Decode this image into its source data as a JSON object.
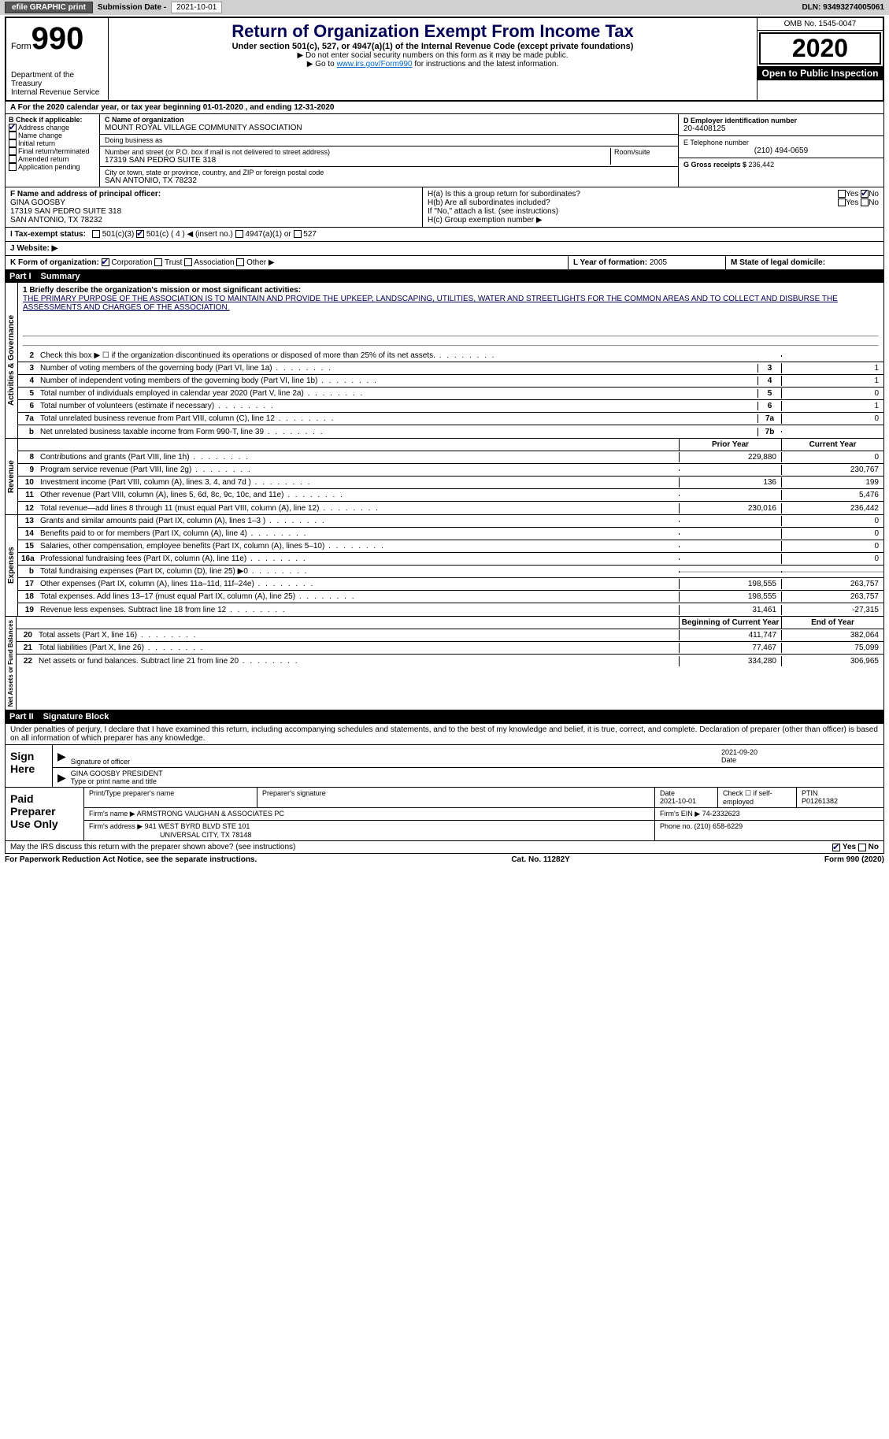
{
  "topbar": {
    "efile_btn": "efile GRAPHIC print",
    "sub_label": "Submission Date - ",
    "sub_date": "2021-10-01",
    "dln_label": "DLN: ",
    "dln": "93493274005061"
  },
  "header": {
    "form_word": "Form",
    "form_num": "990",
    "dept1": "Department of the Treasury",
    "dept2": "Internal Revenue Service",
    "title": "Return of Organization Exempt From Income Tax",
    "sub": "Under section 501(c), 527, or 4947(a)(1) of the Internal Revenue Code (except private foundations)",
    "note1": "▶ Do not enter social security numbers on this form as it may be made public.",
    "note2_pre": "▶ Go to ",
    "note2_link": "www.irs.gov/Form990",
    "note2_post": " for instructions and the latest information.",
    "omb": "OMB No. 1545-0047",
    "year": "2020",
    "inspect": "Open to Public Inspection"
  },
  "section_a": "A  For the 2020 calendar year, or tax year beginning 01-01-2020    , and ending 12-31-2020",
  "checkboxes": {
    "b_label": "B Check if applicable:",
    "items": [
      "Address change",
      "Name change",
      "Initial return",
      "Final return/terminated",
      "Amended return",
      "Application pending"
    ],
    "checked_idx": 0
  },
  "org": {
    "c_label": "C Name of organization",
    "name": "MOUNT ROYAL VILLAGE COMMUNITY ASSOCIATION",
    "dba_label": "Doing business as",
    "addr_label": "Number and street (or P.O. box if mail is not delivered to street address)",
    "room_label": "Room/suite",
    "addr": "17319 SAN PEDRO SUITE 318",
    "city_label": "City or town, state or province, country, and ZIP or foreign postal code",
    "city": "SAN ANTONIO, TX  78232"
  },
  "right_info": {
    "d_label": "D Employer identification number",
    "ein": "20-4408125",
    "e_label": "E Telephone number",
    "phone": "(210) 494-0659",
    "g_label": "G Gross receipts $ ",
    "g_val": "236,442"
  },
  "officer": {
    "f_label": "F Name and address of principal officer:",
    "name": "GINA GOOSBY",
    "addr1": "17319 SAN PEDRO SUITE 318",
    "addr2": "SAN ANTONIO, TX  78232"
  },
  "h": {
    "ha": "H(a)  Is this a group return for subordinates?",
    "hb": "H(b)  Are all subordinates included?",
    "hb_note": "If \"No,\" attach a list. (see instructions)",
    "hc": "H(c)  Group exemption number ▶",
    "yes": "Yes",
    "no": "No"
  },
  "tax_status": {
    "i_label": "I    Tax-exempt status:",
    "opts": [
      "501(c)(3)",
      "501(c) ( 4 ) ◀ (insert no.)",
      "4947(a)(1) or",
      "527"
    ],
    "checked_idx": 1
  },
  "website": {
    "j_label": "J    Website: ▶"
  },
  "k": {
    "label": "K Form of organization:",
    "opts": [
      "Corporation",
      "Trust",
      "Association",
      "Other ▶"
    ],
    "checked_idx": 0
  },
  "l": {
    "label": "L Year of formation: ",
    "val": "2005"
  },
  "m": {
    "label": "M State of legal domicile:"
  },
  "part1": {
    "num": "Part I",
    "title": "Summary"
  },
  "mission": {
    "q1": "1    Briefly describe the organization's mission or most significant activities:",
    "text": "THE PRIMARY PURPOSE OF THE ASSOCIATION IS TO MAINTAIN AND PROVIDE THE UPKEEP, LANDSCAPING, UTILITIES, WATER AND STREETLIGHTS FOR THE COMMON AREAS AND TO COLLECT AND DISBURSE THE ASSESSMENTS AND CHARGES OF THE ASSOCIATION."
  },
  "gov_rows": [
    {
      "n": "2",
      "d": "Check this box ▶ ☐  if the organization discontinued its operations or disposed of more than 25% of its net assets.",
      "box": "",
      "v": ""
    },
    {
      "n": "3",
      "d": "Number of voting members of the governing body (Part VI, line 1a)",
      "box": "3",
      "v": "1"
    },
    {
      "n": "4",
      "d": "Number of independent voting members of the governing body (Part VI, line 1b)",
      "box": "4",
      "v": "1"
    },
    {
      "n": "5",
      "d": "Total number of individuals employed in calendar year 2020 (Part V, line 2a)",
      "box": "5",
      "v": "0"
    },
    {
      "n": "6",
      "d": "Total number of volunteers (estimate if necessary)",
      "box": "6",
      "v": "1"
    },
    {
      "n": "7a",
      "d": "Total unrelated business revenue from Part VIII, column (C), line 12",
      "box": "7a",
      "v": "0"
    },
    {
      "n": "b",
      "d": "Net unrelated business taxable income from Form 990-T, line 39",
      "box": "7b",
      "v": ""
    }
  ],
  "col_heads": {
    "prior": "Prior Year",
    "current": "Current Year",
    "begin": "Beginning of Current Year",
    "end": "End of Year"
  },
  "rev_rows": [
    {
      "n": "8",
      "d": "Contributions and grants (Part VIII, line 1h)",
      "p": "229,880",
      "c": "0"
    },
    {
      "n": "9",
      "d": "Program service revenue (Part VIII, line 2g)",
      "p": "",
      "c": "230,767"
    },
    {
      "n": "10",
      "d": "Investment income (Part VIII, column (A), lines 3, 4, and 7d )",
      "p": "136",
      "c": "199"
    },
    {
      "n": "11",
      "d": "Other revenue (Part VIII, column (A), lines 5, 6d, 8c, 9c, 10c, and 11e)",
      "p": "",
      "c": "5,476"
    },
    {
      "n": "12",
      "d": "Total revenue—add lines 8 through 11 (must equal Part VIII, column (A), line 12)",
      "p": "230,016",
      "c": "236,442"
    }
  ],
  "exp_rows": [
    {
      "n": "13",
      "d": "Grants and similar amounts paid (Part IX, column (A), lines 1–3 )",
      "p": "",
      "c": "0"
    },
    {
      "n": "14",
      "d": "Benefits paid to or for members (Part IX, column (A), line 4)",
      "p": "",
      "c": "0"
    },
    {
      "n": "15",
      "d": "Salaries, other compensation, employee benefits (Part IX, column (A), lines 5–10)",
      "p": "",
      "c": "0"
    },
    {
      "n": "16a",
      "d": "Professional fundraising fees (Part IX, column (A), line 11e)",
      "p": "",
      "c": "0"
    },
    {
      "n": "b",
      "d": "Total fundraising expenses (Part IX, column (D), line 25) ▶0",
      "p": "gray",
      "c": "gray"
    },
    {
      "n": "17",
      "d": "Other expenses (Part IX, column (A), lines 11a–11d, 11f–24e)",
      "p": "198,555",
      "c": "263,757"
    },
    {
      "n": "18",
      "d": "Total expenses. Add lines 13–17 (must equal Part IX, column (A), line 25)",
      "p": "198,555",
      "c": "263,757"
    },
    {
      "n": "19",
      "d": "Revenue less expenses. Subtract line 18 from line 12",
      "p": "31,461",
      "c": "-27,315"
    }
  ],
  "net_rows": [
    {
      "n": "20",
      "d": "Total assets (Part X, line 16)",
      "p": "411,747",
      "c": "382,064"
    },
    {
      "n": "21",
      "d": "Total liabilities (Part X, line 26)",
      "p": "77,467",
      "c": "75,099"
    },
    {
      "n": "22",
      "d": "Net assets or fund balances. Subtract line 21 from line 20",
      "p": "334,280",
      "c": "306,965"
    }
  ],
  "vlabels": {
    "gov": "Activities & Governance",
    "rev": "Revenue",
    "exp": "Expenses",
    "net": "Net Assets or Fund Balances"
  },
  "part2": {
    "num": "Part II",
    "title": "Signature Block"
  },
  "sig_intro": "Under penalties of perjury, I declare that I have examined this return, including accompanying schedules and statements, and to the best of my knowledge and belief, it is true, correct, and complete. Declaration of preparer (other than officer) is based on all information of which preparer has any knowledge.",
  "sign": {
    "label": "Sign Here",
    "sig_of": "Signature of officer",
    "date_lbl": "Date",
    "date": "2021-09-20",
    "name": "GINA GOOSBY PRESIDENT",
    "name_lbl": "Type or print name and title"
  },
  "prep": {
    "label": "Paid Preparer Use Only",
    "h1": "Print/Type preparer's name",
    "h2": "Preparer's signature",
    "h3": "Date",
    "h3v": "2021-10-01",
    "h4": "Check ☐ if self-employed",
    "h5": "PTIN",
    "ptin": "P01261382",
    "firm_lbl": "Firm's name    ▶ ",
    "firm": "ARMSTRONG VAUGHAN & ASSOCIATES PC",
    "ein_lbl": "Firm's EIN ▶ ",
    "ein": "74-2332623",
    "addr_lbl": "Firm's address ▶ ",
    "addr1": "941 WEST BYRD BLVD STE 101",
    "addr2": "UNIVERSAL CITY, TX  78148",
    "phone_lbl": "Phone no. ",
    "phone": "(210) 658-6229"
  },
  "discuss": {
    "q": "May the IRS discuss this return with the preparer shown above? (see instructions)",
    "yes": "Yes",
    "no": "No"
  },
  "footer": {
    "pra": "For Paperwork Reduction Act Notice, see the separate instructions.",
    "cat": "Cat. No. 11282Y",
    "form": "Form 990 (2020)"
  }
}
